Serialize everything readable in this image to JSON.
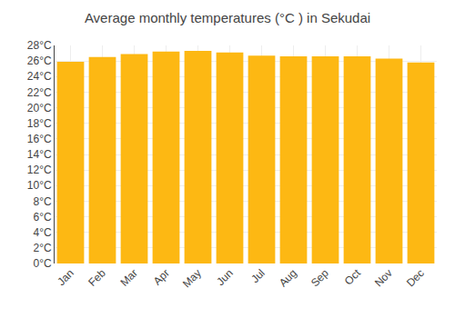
{
  "chart_data": {
    "type": "bar",
    "title": "Average monthly temperatures (°C ) in Sekudai",
    "categories": [
      "Jan",
      "Feb",
      "Mar",
      "Apr",
      "May",
      "Jun",
      "Jul",
      "Aug",
      "Sep",
      "Oct",
      "Nov",
      "Dec"
    ],
    "values": [
      25.9,
      26.5,
      26.9,
      27.2,
      27.3,
      27.1,
      26.7,
      26.6,
      26.6,
      26.6,
      26.3,
      25.8
    ],
    "color": "#FDB813",
    "ylim": [
      0,
      28
    ],
    "yticks": [
      {
        "value": 0,
        "label": "0°C"
      },
      {
        "value": 2,
        "label": "2°C"
      },
      {
        "value": 4,
        "label": "4°C"
      },
      {
        "value": 6,
        "label": "6°C"
      },
      {
        "value": 8,
        "label": "8°C"
      },
      {
        "value": 10,
        "label": "10°C"
      },
      {
        "value": 12,
        "label": "12°C"
      },
      {
        "value": 14,
        "label": "14°C"
      },
      {
        "value": 16,
        "label": "16°C"
      },
      {
        "value": 18,
        "label": "18°C"
      },
      {
        "value": 20,
        "label": "20°C"
      },
      {
        "value": 22,
        "label": "22°C"
      },
      {
        "value": 24,
        "label": "24°C"
      },
      {
        "value": 26,
        "label": "26°C"
      },
      {
        "value": 28,
        "label": "28°C"
      }
    ],
    "grid": true
  }
}
